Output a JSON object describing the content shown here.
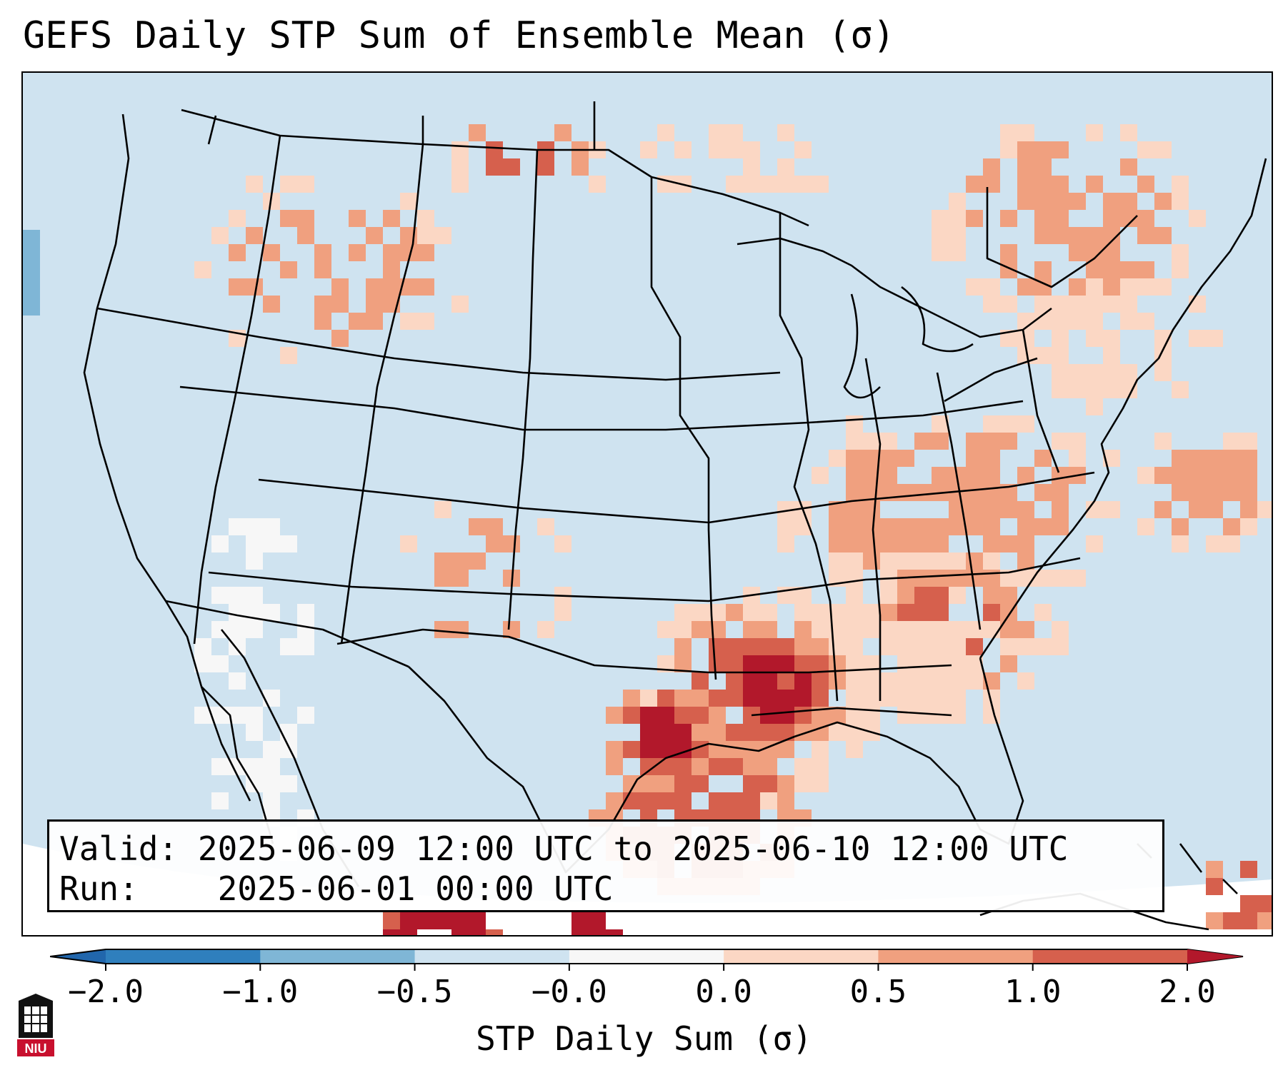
{
  "title": "GEFS Daily STP Sum of Ensemble Mean (σ)",
  "info": {
    "valid_label": "Valid:",
    "valid_value": "2025-06-09 12:00 UTC to 2025-06-10 12:00 UTC",
    "run_label": "Run:",
    "run_value": "2025-06-01 00:00 UTC"
  },
  "colorbar": {
    "label": "STP Daily Sum (σ)",
    "tick_labels": [
      "−2.0",
      "−1.0",
      "−0.5",
      "−0.0",
      "0.0",
      "0.5",
      "1.0",
      "2.0"
    ],
    "colors": [
      "#2f7fbd",
      "#7fb6d6",
      "#cfe3f0",
      "#f7f7f7",
      "#fbd7c4",
      "#f0a07f",
      "#d6604d"
    ],
    "extend_low_color": "#2166ac",
    "extend_high_color": "#b2182b"
  },
  "map": {
    "ocean_color": "#cfe3f0",
    "boundary_color": "#000000"
  },
  "logo": {
    "text": "NIU",
    "colors": [
      "#c8102e",
      "#000000"
    ]
  }
}
